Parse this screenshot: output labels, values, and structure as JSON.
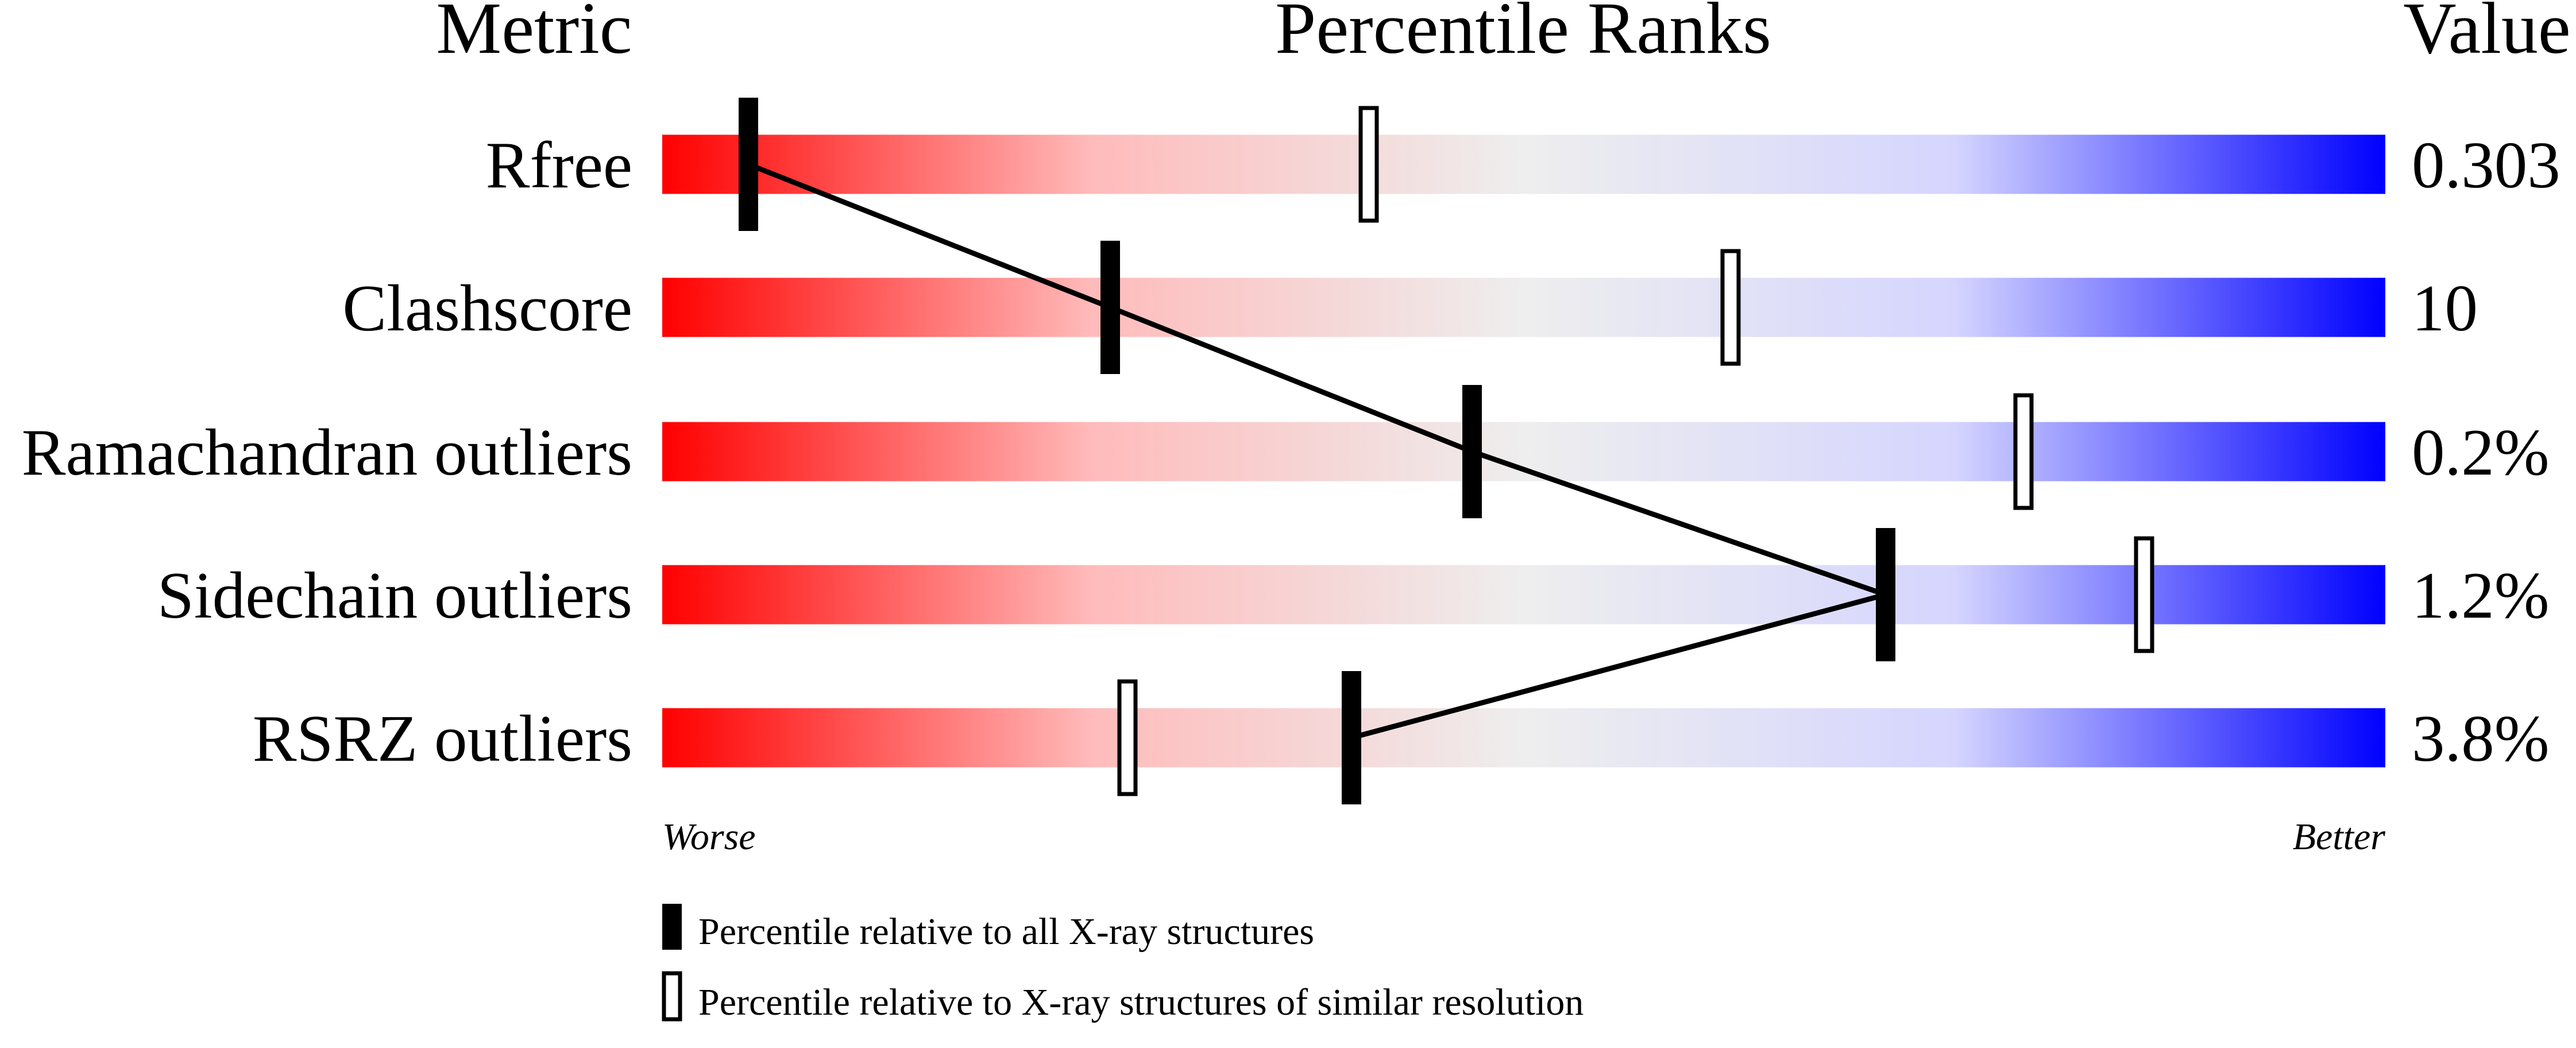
{
  "chart_data": {
    "type": "percentile-ranks",
    "headers": {
      "metric": "Metric",
      "title": "Percentile Ranks",
      "value": "Value"
    },
    "xlim": [
      0,
      100
    ],
    "axis_ends": {
      "left": "Worse",
      "right": "Better"
    },
    "gradient_colors": [
      "#ff0000",
      "#ffbbbb",
      "#eeeeee",
      "#d5d5ff",
      "#0000ff"
    ],
    "metrics": [
      {
        "name": "Rfree",
        "value": "0.303",
        "percentile_all": 5,
        "percentile_similar": 41
      },
      {
        "name": "Clashscore",
        "value": "10",
        "percentile_all": 26,
        "percentile_similar": 62
      },
      {
        "name": "Ramachandran outliers",
        "value": "0.2%",
        "percentile_all": 47,
        "percentile_similar": 79
      },
      {
        "name": "Sidechain outliers",
        "value": "1.2%",
        "percentile_all": 71,
        "percentile_similar": 86
      },
      {
        "name": "RSRZ outliers",
        "value": "3.8%",
        "percentile_all": 40,
        "percentile_similar": 27
      }
    ],
    "legend": [
      {
        "marker": "filled",
        "label": "Percentile relative to all X-ray structures"
      },
      {
        "marker": "open",
        "label": "Percentile relative to X-ray structures of similar resolution"
      }
    ]
  }
}
